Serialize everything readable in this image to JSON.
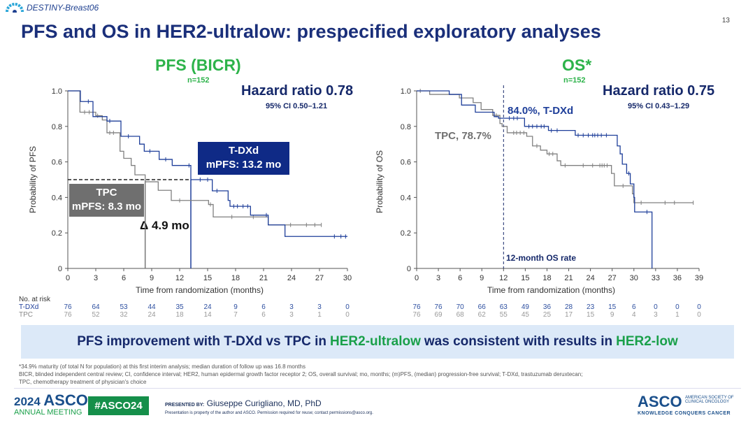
{
  "header": {
    "logo": "DESTINY-Breast06",
    "page_number": "13",
    "title": "PFS and OS in HER2-ultralow: prespecified exploratory analyses"
  },
  "pfs": {
    "title": "PFS (BICR)",
    "n": "n=152",
    "hr": "Hazard ratio 0.78",
    "ci": "95% CI 0.50–1.21",
    "ylabel": "Probability of PFS",
    "xlabel": "Time from randomization (months)",
    "tdxd_box": [
      "T-DXd",
      "mPFS: 13.2 mo"
    ],
    "tpc_box": [
      "TPC",
      "mPFS: 8.3 mo"
    ],
    "delta": "Δ 4.9 mo"
  },
  "os": {
    "title": "OS*",
    "n": "n=152",
    "hr": "Hazard ratio 0.75",
    "ci": "95% CI 0.43–1.29",
    "ylabel": "Probability of OS",
    "xlabel": "Time from randomization (months)",
    "tdxd_label": "84.0%, T-DXd",
    "tpc_label": "TPC, 78.7%",
    "rate_label": "12-month OS rate"
  },
  "risk": {
    "header": "No. at risk",
    "tdxd": "T-DXd",
    "tpc": "TPC"
  },
  "banner": {
    "pre": "PFS improvement with T-DXd vs TPC in",
    "g1": "HER2-ultralow",
    "mid": "was consistent with results in",
    "g2": "HER2-low"
  },
  "footnotes": [
    "*34.9% maturity (of total N for population) at this first interim analysis; median duration of follow up was 16.8 months",
    "BICR, blinded independent central review; CI, confidence interval; HER2, human epidermal growth factor receptor 2; OS, overall survival; mo, months; (m)PFS, (median) progression-free survival; T-DXd, trastuzumab deruxtecan;",
    "TPC, chemotherapy treatment of physician's choice"
  ],
  "footer": {
    "meeting_year": "2024",
    "meeting_brand": "ASCO",
    "meeting_sub": "ANNUAL MEETING",
    "hashtag": "#ASCO24",
    "presented_by": "PRESENTED BY:",
    "presenter": "Giuseppe Curigliano, MD, PhD",
    "notice": "Presentation is property of the author and ASCO. Permission required for reuse; contact permissions@asco.org.",
    "asco_logo": "ASCO",
    "asco_org": "AMERICAN SOCIETY OF CLINICAL ONCOLOGY",
    "asco_tag": "KNOWLEDGE CONQUERS CANCER"
  },
  "colors": {
    "tdxd": "#1f3f9a",
    "tpc": "#808080",
    "green": "#2db34a",
    "navy": "#15286a"
  },
  "chart_data": [
    {
      "type": "line",
      "title": "PFS (BICR)",
      "xlabel": "Time from randomization (months)",
      "ylabel": "Probability of PFS",
      "xlim": [
        0,
        30
      ],
      "ylim": [
        0,
        1
      ],
      "xticks": [
        0,
        3,
        6,
        9,
        12,
        15,
        18,
        21,
        24,
        27,
        30
      ],
      "yticks": [
        "0",
        "0.2",
        "0.4",
        "0.6",
        "0.8",
        "1.0"
      ],
      "median_line": 0.5,
      "medians": {
        "T-DXd": 13.2,
        "TPC": 8.3
      },
      "series": [
        {
          "name": "T-DXd",
          "points": [
            [
              0,
              1
            ],
            [
              1.35,
              0.94
            ],
            [
              2.7,
              0.855
            ],
            [
              4.2,
              0.83
            ],
            [
              5.7,
              0.744
            ],
            [
              7.7,
              0.7
            ],
            [
              8.2,
              0.66
            ],
            [
              9.8,
              0.614
            ],
            [
              11.2,
              0.58
            ],
            [
              13.2,
              0.5
            ],
            [
              15.5,
              0.437
            ],
            [
              17.2,
              0.383
            ],
            [
              17.4,
              0.35
            ],
            [
              19.6,
              0.3
            ],
            [
              21.5,
              0.245
            ],
            [
              23.3,
              0.18
            ],
            [
              30,
              0.18
            ]
          ],
          "censor": [
            2.2,
            4.5,
            6.5,
            8.8,
            10.5,
            13,
            14.2,
            15,
            16,
            17.8,
            18.2,
            18.8,
            19.3,
            21.3,
            28.6,
            29.3,
            29.8
          ],
          "at_risk": [
            76,
            64,
            53,
            44,
            35,
            24,
            9,
            6,
            3,
            3,
            0
          ]
        },
        {
          "name": "TPC",
          "points": [
            [
              0,
              1
            ],
            [
              1.3,
              0.88
            ],
            [
              3.0,
              0.86
            ],
            [
              3.7,
              0.836
            ],
            [
              4.2,
              0.764
            ],
            [
              5.6,
              0.66
            ],
            [
              6.0,
              0.62
            ],
            [
              6.8,
              0.58
            ],
            [
              7.2,
              0.527
            ],
            [
              8.3,
              0.488
            ],
            [
              9.7,
              0.44
            ],
            [
              11.1,
              0.383
            ],
            [
              15.1,
              0.36
            ],
            [
              15.6,
              0.29
            ],
            [
              21.5,
              0.245
            ],
            [
              27.2,
              0.245
            ]
          ],
          "censor": [
            1.8,
            2.3,
            3.2,
            4.5,
            4.9,
            12,
            15.3,
            17.6,
            19.9,
            23.9,
            25.6,
            26.5,
            27.2
          ],
          "at_risk": [
            76,
            52,
            32,
            24,
            18,
            14,
            7,
            6,
            3,
            1,
            0
          ]
        }
      ]
    },
    {
      "type": "line",
      "title": "OS*",
      "xlabel": "Time from randomization (months)",
      "ylabel": "Probability of OS",
      "xlim": [
        0,
        39
      ],
      "ylim": [
        0,
        1
      ],
      "xticks": [
        0,
        3,
        6,
        9,
        12,
        15,
        18,
        21,
        24,
        27,
        30,
        33,
        36,
        39
      ],
      "yticks": [
        "0",
        "0.2",
        "0.4",
        "0.6",
        "0.8",
        "1.0"
      ],
      "landmark_month": 12,
      "landmark_rates": {
        "T-DXd": 84.0,
        "TPC": 78.7
      },
      "series": [
        {
          "name": "T-DXd",
          "points": [
            [
              0,
              1
            ],
            [
              4.5,
              0.98
            ],
            [
              6.2,
              0.92
            ],
            [
              8.1,
              0.88
            ],
            [
              10.7,
              0.855
            ],
            [
              11.3,
              0.846
            ],
            [
              14.9,
              0.8
            ],
            [
              18.2,
              0.777
            ],
            [
              21.9,
              0.75
            ],
            [
              27.7,
              0.69
            ],
            [
              28.1,
              0.645
            ],
            [
              28.4,
              0.587
            ],
            [
              29,
              0.535
            ],
            [
              29.5,
              0.476
            ],
            [
              30,
              0.4
            ],
            [
              30.1,
              0.318
            ],
            [
              32.5,
              0
            ]
          ],
          "censor": [
            12.8,
            13.4,
            13.9,
            15.5,
            16,
            16.6,
            17.2,
            17.6,
            18.6,
            19.4,
            22.3,
            23,
            23.7,
            24.3,
            24.6,
            25,
            25.5,
            26.2,
            29.3,
            31.8
          ],
          "at_risk": [
            76,
            76,
            70,
            66,
            63,
            49,
            36,
            28,
            23,
            15,
            6,
            0,
            0,
            0
          ]
        },
        {
          "name": "TPC",
          "points": [
            [
              0,
              1
            ],
            [
              1.8,
              0.98
            ],
            [
              5.9,
              0.96
            ],
            [
              7.8,
              0.934
            ],
            [
              8.9,
              0.895
            ],
            [
              10.5,
              0.862
            ],
            [
              11.5,
              0.816
            ],
            [
              11.8,
              0.8
            ],
            [
              12.5,
              0.764
            ],
            [
              15.2,
              0.744
            ],
            [
              16,
              0.69
            ],
            [
              17.1,
              0.666
            ],
            [
              18,
              0.645
            ],
            [
              19.4,
              0.606
            ],
            [
              19.9,
              0.58
            ],
            [
              26.9,
              0.535
            ],
            [
              27.3,
              0.465
            ],
            [
              29.8,
              0.42
            ],
            [
              30,
              0.37
            ],
            [
              38.2,
              0.37
            ]
          ],
          "censor": [
            0.5,
            11,
            13.4,
            13.8,
            14.3,
            14.8,
            16.6,
            18.3,
            18.8,
            20.5,
            23,
            24.3,
            25.3,
            25.6,
            25.9,
            26.3,
            28.5,
            31,
            34.3,
            35.6,
            38.2
          ],
          "at_risk": [
            76,
            69,
            68,
            62,
            55,
            45,
            25,
            17,
            15,
            9,
            4,
            3,
            1,
            0
          ]
        }
      ]
    }
  ]
}
